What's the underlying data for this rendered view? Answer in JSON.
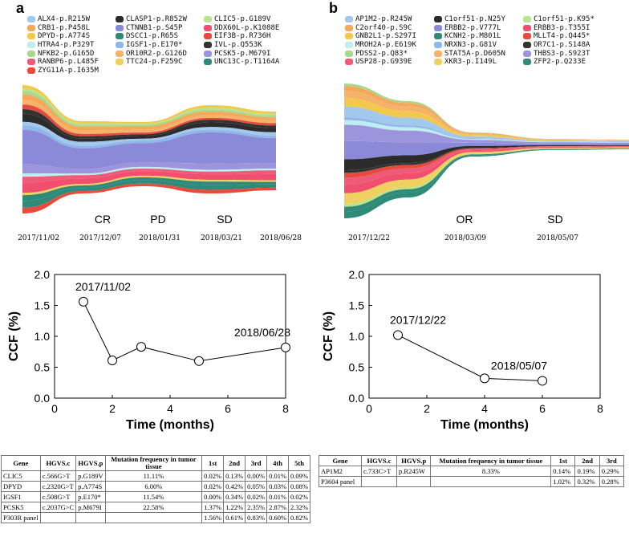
{
  "panels": [
    {
      "letter": "a",
      "state_labels": [
        "CR",
        "PD",
        "SD"
      ],
      "dates": [
        "2017/11/02",
        "2017/12/07",
        "2018/01/31",
        "2018/03/21",
        "2018/06/28"
      ]
    },
    {
      "letter": "b",
      "state_labels": [
        "OR",
        "SD"
      ],
      "dates": [
        "2017/12/22",
        "2018/03/09",
        "2018/05/07"
      ]
    }
  ],
  "legend_a": [
    {
      "label": "ALX4-p.R215W",
      "color": "#a3c8ee"
    },
    {
      "label": "CLASP1-p.R852W",
      "color": "#2b2b2b"
    },
    {
      "label": "CLIC5-p.G189V",
      "color": "#b9e38e"
    },
    {
      "label": "CRB1-p.P458L",
      "color": "#f5a85c"
    },
    {
      "label": "CTNNB1-p.S45P",
      "color": "#8a8ad8"
    },
    {
      "label": "DDX60L-p.K1088E",
      "color": "#f0506e"
    },
    {
      "label": "DPYD-p.A774S",
      "color": "#f2c94c"
    },
    {
      "label": "DSCC1-p.R65S",
      "color": "#2f8a78"
    },
    {
      "label": "EIF3B-p.R736H",
      "color": "#e64a3c"
    },
    {
      "label": "HTRA4-p.P329T",
      "color": "#bfeef0"
    },
    {
      "label": "IGSF1-p.E170*",
      "color": "#8fb8e8"
    },
    {
      "label": "IVL-p.Q553K",
      "color": "#333333"
    },
    {
      "label": "NFKB2-p.G165D",
      "color": "#a8d88a"
    },
    {
      "label": "OR10R2-p.G126D",
      "color": "#f5b26b"
    },
    {
      "label": "PCSK5-p.M679I",
      "color": "#9c94dc"
    },
    {
      "label": "RANBP6-p.L485F",
      "color": "#ee5a78"
    },
    {
      "label": "TTC24-p.F259C",
      "color": "#f0d060"
    },
    {
      "label": "UNC13C-p.T1164A",
      "color": "#2e8b7a"
    },
    {
      "label": "ZYG11A-p.I635M",
      "color": "#e84b3a"
    }
  ],
  "legend_b": [
    {
      "label": "AP1M2-p.R245W",
      "color": "#a3c8ee"
    },
    {
      "label": "C1orf51-p.N25Y",
      "color": "#2b2b2b"
    },
    {
      "label": "C1orf51-p.K95*",
      "color": "#b9e38e"
    },
    {
      "label": "C2orf40-p.S9C",
      "color": "#f5a85c"
    },
    {
      "label": "ERBB2-p.V777L",
      "color": "#8a8ad8"
    },
    {
      "label": "ERBB3-p.T355I",
      "color": "#f0506e"
    },
    {
      "label": "GNB2L1-p.S297I",
      "color": "#f2c94c"
    },
    {
      "label": "KCNH2-p.M801L",
      "color": "#2f8a78"
    },
    {
      "label": "MLLT4-p.Q445*",
      "color": "#e64a3c"
    },
    {
      "label": "MROH2A-p.E619K",
      "color": "#bfeef0"
    },
    {
      "label": "NRXN3-p.G81V",
      "color": "#8fb8e8"
    },
    {
      "label": "OR7C1-p.S148A",
      "color": "#333333"
    },
    {
      "label": "PDSS2-p.Q83*",
      "color": "#a8d88a"
    },
    {
      "label": "STAT5A-p.D605N",
      "color": "#f5b26b"
    },
    {
      "label": "THBS3-p.S923T",
      "color": "#9c94dc"
    },
    {
      "label": "USP28-p.G939E",
      "color": "#ee5a78"
    },
    {
      "label": "XKR3-p.I149L",
      "color": "#f0d060"
    },
    {
      "label": "ZFP2-p.Q233E",
      "color": "#2e8b7a"
    }
  ],
  "chart_data": [
    {
      "type": "line",
      "title": "",
      "xlabel": "Time (months)",
      "ylabel": "CCF (%)",
      "xlim": [
        0,
        8
      ],
      "ylim": [
        0.0,
        2.0
      ],
      "xticks": [
        "0",
        "2",
        "4",
        "6",
        "8"
      ],
      "yticks": [
        "0.0",
        "0.5",
        "1.0",
        "1.5",
        "2.0"
      ],
      "x": [
        1,
        2,
        3,
        5,
        8
      ],
      "y": [
        1.56,
        0.61,
        0.83,
        0.6,
        0.82
      ],
      "annotations": [
        {
          "text": "2017/11/02",
          "x": 1,
          "y": 1.56
        },
        {
          "text": "2018/06/28",
          "x": 8,
          "y": 0.82
        }
      ]
    },
    {
      "type": "line",
      "title": "",
      "xlabel": "Time (months)",
      "ylabel": "CCF (%)",
      "xlim": [
        0,
        8
      ],
      "ylim": [
        0.0,
        2.0
      ],
      "xticks": [
        "0",
        "2",
        "4",
        "6",
        "8"
      ],
      "yticks": [
        "0.0",
        "0.5",
        "1.0",
        "1.5",
        "2.0"
      ],
      "x": [
        1,
        4,
        6
      ],
      "y": [
        1.02,
        0.32,
        0.28
      ],
      "annotations": [
        {
          "text": "2017/12/22",
          "x": 1,
          "y": 1.02
        },
        {
          "text": "2018/05/07",
          "x": 6,
          "y": 0.28
        }
      ]
    }
  ],
  "table_a": {
    "headers": [
      "Gene",
      "HGVS.c",
      "HGVS.p",
      "Mutation frequency in tumor tissue",
      "1st",
      "2nd",
      "3rd",
      "4th",
      "5th"
    ],
    "rows": [
      [
        "CLIC5",
        "c.566G>T",
        "p.G189V",
        "11.11%",
        "0.02%",
        "0.13%",
        "0.00%",
        "0.01%",
        "0.09%"
      ],
      [
        "DPYD",
        "c.2320G>T",
        "p.A774S",
        "6.00%",
        "0.02%",
        "0.42%",
        "0.05%",
        "0.03%",
        "0.08%"
      ],
      [
        "IGSF1",
        "c.508G>T",
        "p.E170*",
        "11.54%",
        "0.00%",
        "0.34%",
        "0.02%",
        "0.01%",
        "0.02%"
      ],
      [
        "PCSK5",
        "c.2037G>C",
        "p.M679I",
        "22.58%",
        "1.37%",
        "1.22%",
        "2.35%",
        "2.87%",
        "2.32%"
      ],
      [
        "P303R panel",
        "",
        "",
        "",
        "1.56%",
        "0.61%",
        "0.83%",
        "0.60%",
        "0.82%"
      ]
    ]
  },
  "table_b": {
    "headers": [
      "Gene",
      "HGVS.c",
      "HGVS.p",
      "Mutation frequency in tumor tissue",
      "1st",
      "2nd",
      "3rd"
    ],
    "rows": [
      [
        "AP1M2",
        "c.733C>T",
        "p.R245W",
        "8.33%",
        "0.14%",
        "0.19%",
        "0.29%"
      ],
      [
        "P3604 panel",
        "",
        "",
        "",
        "1.02%",
        "0.32%",
        "0.28%"
      ]
    ]
  }
}
